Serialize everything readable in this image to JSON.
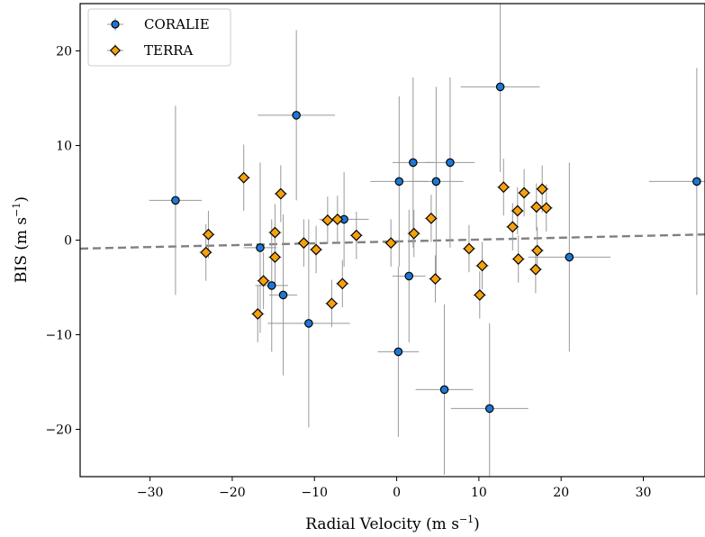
{
  "chart_data": {
    "type": "scatter",
    "xlabel": "Radial Velocity (m s",
    "ylabel": "BIS (m s",
    "unit_exponent": "−1",
    "unit_close": ")",
    "xlim": [
      -38.5,
      37.5
    ],
    "ylim": [
      -25,
      25
    ],
    "xticks": [
      -30,
      -20,
      -10,
      0,
      10,
      20,
      30
    ],
    "yticks": [
      -20,
      -10,
      0,
      10,
      20
    ],
    "tick_labels_x": [
      "−30",
      "−20",
      "−10",
      "0",
      "10",
      "20",
      "30"
    ],
    "tick_labels_y": [
      "−20",
      "−10",
      "0",
      "10",
      "20"
    ],
    "grid": false,
    "legend": "top-left",
    "trend_line": {
      "x": [
        -38.5,
        37.5
      ],
      "y": [
        -0.9,
        0.6
      ],
      "color": "#808080",
      "style": "dashed"
    },
    "series": [
      {
        "name": "CORALIE",
        "marker": "circle",
        "color": "#1f77d4",
        "points": [
          {
            "x": -26.9,
            "y": 4.2,
            "xerr": 3.2,
            "yerr": 10.0
          },
          {
            "x": -12.2,
            "y": 13.2,
            "xerr": 4.7,
            "yerr": 9.0
          },
          {
            "x": -16.6,
            "y": -0.8,
            "xerr": 2.0,
            "yerr": 9.0
          },
          {
            "x": -15.2,
            "y": -4.8,
            "xerr": 2.0,
            "yerr": 7.0
          },
          {
            "x": -13.8,
            "y": -5.8,
            "xerr": 1.7,
            "yerr": 8.5
          },
          {
            "x": -10.7,
            "y": -8.8,
            "xerr": 5.0,
            "yerr": 11.0
          },
          {
            "x": -6.4,
            "y": 2.2,
            "xerr": 3.0,
            "yerr": 5.0
          },
          {
            "x": 0.3,
            "y": 6.2,
            "xerr": 3.5,
            "yerr": 9.0
          },
          {
            "x": 2.0,
            "y": 8.2,
            "xerr": 2.5,
            "yerr": 9.0
          },
          {
            "x": 4.8,
            "y": 6.2,
            "xerr": 3.3,
            "yerr": 10.0
          },
          {
            "x": 6.5,
            "y": 8.2,
            "xerr": 3.0,
            "yerr": 9.0
          },
          {
            "x": 12.6,
            "y": 16.2,
            "xerr": 4.8,
            "yerr": 9.0
          },
          {
            "x": 1.5,
            "y": -3.8,
            "xerr": 2.0,
            "yerr": 7.0
          },
          {
            "x": 0.2,
            "y": -11.8,
            "xerr": 2.5,
            "yerr": 9.0
          },
          {
            "x": 5.8,
            "y": -15.8,
            "xerr": 3.5,
            "yerr": 9.0
          },
          {
            "x": 11.3,
            "y": -17.8,
            "xerr": 4.7,
            "yerr": 9.0
          },
          {
            "x": 21.0,
            "y": -1.8,
            "xerr": 5.0,
            "yerr": 10.0
          },
          {
            "x": 36.5,
            "y": 6.2,
            "xerr": 5.8,
            "yerr": 12.0
          }
        ]
      },
      {
        "name": "TERRA",
        "marker": "diamond",
        "color": "#f5a10e",
        "points": [
          {
            "x": -18.6,
            "y": 6.6,
            "xerr": 0.8,
            "yerr": 3.5
          },
          {
            "x": -14.1,
            "y": 4.9,
            "xerr": 0.8,
            "yerr": 3.0
          },
          {
            "x": -22.9,
            "y": 0.6,
            "xerr": 0.8,
            "yerr": 2.5
          },
          {
            "x": -23.2,
            "y": -1.3,
            "xerr": 0.8,
            "yerr": 3.0
          },
          {
            "x": -14.8,
            "y": 0.8,
            "xerr": 0.8,
            "yerr": 3.0
          },
          {
            "x": -14.8,
            "y": -1.8,
            "xerr": 0.8,
            "yerr": 3.0
          },
          {
            "x": -16.2,
            "y": -4.3,
            "xerr": 0.8,
            "yerr": 3.0
          },
          {
            "x": -16.9,
            "y": -7.8,
            "xerr": 0.8,
            "yerr": 3.0
          },
          {
            "x": -11.3,
            "y": -0.3,
            "xerr": 0.8,
            "yerr": 2.5
          },
          {
            "x": -8.4,
            "y": 2.1,
            "xerr": 0.8,
            "yerr": 2.5
          },
          {
            "x": -7.2,
            "y": 2.2,
            "xerr": 0.8,
            "yerr": 2.5
          },
          {
            "x": -9.8,
            "y": -1.0,
            "xerr": 0.8,
            "yerr": 2.5
          },
          {
            "x": -4.9,
            "y": 0.5,
            "xerr": 0.8,
            "yerr": 2.5
          },
          {
            "x": -6.6,
            "y": -4.6,
            "xerr": 0.8,
            "yerr": 2.5
          },
          {
            "x": -7.9,
            "y": -6.7,
            "xerr": 0.8,
            "yerr": 2.5
          },
          {
            "x": -0.7,
            "y": -0.3,
            "xerr": 0.8,
            "yerr": 2.5
          },
          {
            "x": 2.1,
            "y": 0.7,
            "xerr": 0.8,
            "yerr": 2.5
          },
          {
            "x": 4.2,
            "y": 2.3,
            "xerr": 0.8,
            "yerr": 2.5
          },
          {
            "x": 4.7,
            "y": -4.1,
            "xerr": 0.8,
            "yerr": 2.5
          },
          {
            "x": 8.8,
            "y": -0.9,
            "xerr": 0.8,
            "yerr": 2.5
          },
          {
            "x": 10.4,
            "y": -2.7,
            "xerr": 0.8,
            "yerr": 2.5
          },
          {
            "x": 10.1,
            "y": -5.8,
            "xerr": 0.8,
            "yerr": 2.5
          },
          {
            "x": 13.0,
            "y": 5.6,
            "xerr": 0.8,
            "yerr": 3.0
          },
          {
            "x": 15.5,
            "y": 5.0,
            "xerr": 0.8,
            "yerr": 2.5
          },
          {
            "x": 14.7,
            "y": 3.1,
            "xerr": 0.8,
            "yerr": 2.5
          },
          {
            "x": 14.1,
            "y": 1.4,
            "xerr": 0.8,
            "yerr": 2.5
          },
          {
            "x": 17.0,
            "y": 3.5,
            "xerr": 0.8,
            "yerr": 2.5
          },
          {
            "x": 17.7,
            "y": 5.4,
            "xerr": 0.8,
            "yerr": 2.5
          },
          {
            "x": 18.2,
            "y": 3.4,
            "xerr": 0.8,
            "yerr": 2.5
          },
          {
            "x": 14.8,
            "y": -2.0,
            "xerr": 0.8,
            "yerr": 2.5
          },
          {
            "x": 17.1,
            "y": -1.1,
            "xerr": 0.8,
            "yerr": 2.5
          },
          {
            "x": 16.9,
            "y": -3.1,
            "xerr": 0.8,
            "yerr": 2.5
          }
        ]
      }
    ]
  }
}
